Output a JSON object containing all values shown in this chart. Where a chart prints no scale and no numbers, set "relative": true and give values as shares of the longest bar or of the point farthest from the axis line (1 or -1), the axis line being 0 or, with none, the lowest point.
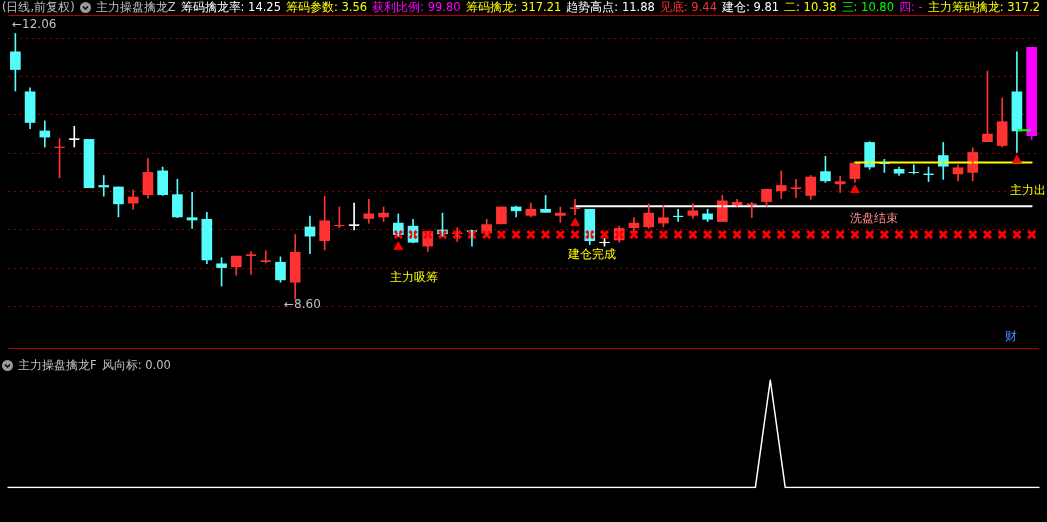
{
  "chart_data": [
    {
      "type": "candlestick",
      "title": "(日线,前复权)",
      "categories": [
        null,
        null,
        null,
        null,
        null,
        null,
        null,
        null,
        null,
        null,
        null,
        null,
        null,
        null,
        null,
        null,
        null,
        null,
        null,
        null,
        null,
        null,
        null,
        null,
        null,
        null,
        null,
        null,
        null,
        null,
        null,
        null,
        null,
        null,
        null,
        null,
        null,
        null,
        null,
        null,
        null,
        null,
        null,
        null,
        null,
        null,
        null,
        null,
        null,
        null,
        null,
        null,
        null,
        null,
        null,
        null,
        null,
        null,
        null,
        null,
        null,
        null,
        null,
        null,
        null,
        null,
        null,
        null,
        null,
        null
      ],
      "ohlc": [
        [
          11.82,
          12.06,
          11.31,
          11.59
        ],
        [
          11.3,
          11.35,
          10.82,
          10.9
        ],
        [
          10.79,
          10.92,
          10.58,
          10.71
        ],
        [
          10.58,
          10.69,
          10.18,
          10.58
        ],
        [
          10.69,
          10.85,
          10.58,
          10.69
        ],
        [
          10.68,
          10.68,
          10.05,
          10.05
        ],
        [
          10.08,
          10.21,
          9.94,
          10.06
        ],
        [
          10.06,
          10.06,
          9.67,
          9.84
        ],
        [
          9.85,
          10.02,
          9.77,
          9.93
        ],
        [
          9.96,
          10.43,
          9.91,
          10.25
        ],
        [
          10.27,
          10.32,
          9.95,
          9.96
        ],
        [
          9.96,
          10.16,
          9.66,
          9.67
        ],
        [
          9.66,
          9.99,
          9.52,
          9.63
        ],
        [
          9.64,
          9.73,
          9.06,
          9.11
        ],
        [
          9.06,
          9.14,
          8.77,
          9.01
        ],
        [
          9.02,
          9.16,
          8.91,
          9.16
        ],
        [
          9.18,
          9.22,
          8.92,
          9.18
        ],
        [
          9.1,
          9.23,
          9.07,
          9.1
        ],
        [
          9.08,
          9.15,
          8.82,
          8.85
        ],
        [
          8.82,
          9.44,
          8.6,
          9.21
        ],
        [
          9.54,
          9.68,
          9.19,
          9.42
        ],
        [
          9.36,
          9.94,
          9.24,
          9.62
        ],
        [
          9.56,
          9.8,
          9.53,
          9.56
        ],
        [
          9.57,
          9.85,
          9.5,
          9.57
        ],
        [
          9.65,
          9.9,
          9.59,
          9.71
        ],
        [
          9.67,
          9.8,
          9.61,
          9.72
        ],
        [
          9.59,
          9.71,
          9.42,
          9.44
        ],
        [
          9.55,
          9.64,
          9.33,
          9.34
        ],
        [
          9.29,
          9.48,
          9.22,
          9.48
        ],
        [
          9.5,
          9.72,
          9.42,
          9.45
        ],
        [
          9.46,
          9.53,
          9.35,
          9.46
        ],
        [
          9.49,
          9.5,
          9.29,
          9.49
        ],
        [
          9.46,
          9.64,
          9.44,
          9.57
        ],
        [
          9.58,
          9.8,
          9.58,
          9.8
        ],
        [
          9.8,
          9.81,
          9.67,
          9.75
        ],
        [
          9.69,
          9.85,
          9.67,
          9.77
        ],
        [
          9.77,
          9.95,
          9.73,
          9.73
        ],
        [
          9.69,
          9.8,
          9.6,
          9.72
        ],
        [
          9.79,
          9.9,
          9.7,
          9.79
        ],
        [
          9.77,
          9.77,
          9.31,
          9.36
        ],
        [
          9.34,
          9.39,
          9.29,
          9.34
        ],
        [
          9.37,
          9.55,
          9.34,
          9.52
        ],
        [
          9.53,
          9.66,
          9.47,
          9.59
        ],
        [
          9.54,
          9.84,
          9.52,
          9.72
        ],
        [
          9.59,
          9.82,
          9.54,
          9.66
        ],
        [
          9.68,
          9.77,
          9.61,
          9.68
        ],
        [
          9.69,
          9.84,
          9.65,
          9.75
        ],
        [
          9.71,
          9.77,
          9.61,
          9.64
        ],
        [
          9.61,
          9.95,
          9.61,
          9.88
        ],
        [
          9.82,
          9.9,
          9.81,
          9.86
        ],
        [
          9.84,
          9.86,
          9.66,
          9.84
        ],
        [
          9.87,
          10.03,
          9.81,
          10.03
        ],
        [
          10.01,
          10.27,
          9.91,
          10.08
        ],
        [
          10.05,
          10.16,
          9.92,
          10.05
        ],
        [
          9.95,
          10.21,
          9.9,
          10.19
        ],
        [
          10.26,
          10.46,
          10.12,
          10.14
        ],
        [
          10.1,
          10.2,
          9.99,
          10.13
        ],
        [
          10.17,
          10.37,
          10.12,
          10.37
        ],
        [
          10.64,
          10.65,
          10.29,
          10.32
        ],
        [
          10.37,
          10.42,
          10.25,
          10.37
        ],
        [
          10.29,
          10.32,
          10.21,
          10.24
        ],
        [
          10.25,
          10.35,
          10.23,
          10.25
        ],
        [
          10.23,
          10.32,
          10.13,
          10.23
        ],
        [
          10.47,
          10.64,
          10.16,
          10.33
        ],
        [
          10.23,
          10.35,
          10.14,
          10.31
        ],
        [
          10.25,
          10.57,
          10.14,
          10.51
        ],
        [
          10.65,
          11.57,
          10.65,
          10.75
        ],
        [
          10.6,
          11.22,
          10.58,
          10.91
        ],
        [
          11.3,
          11.82,
          10.51,
          10.79
        ],
        [
          10.73,
          11.88,
          10.68,
          11.88
        ]
      ],
      "colors": [
        "#54fcfc",
        "#54fcfc",
        "#54fcfc",
        "#ff3232",
        "#ffffff",
        "#54fcfc",
        "#54fcfc",
        "#54fcfc",
        "#ff3232",
        "#ff3232",
        "#54fcfc",
        "#54fcfc",
        "#54fcfc",
        "#54fcfc",
        "#54fcfc",
        "#ff3232",
        "#ff3232",
        "#ff3232",
        "#54fcfc",
        "#ff3232",
        "#54fcfc",
        "#ff3232",
        "#ff3232",
        "#ffffff",
        "#ff3232",
        "#ff3232",
        "#54fcfc",
        "#54fcfc",
        "#ff3232",
        "#54fcfc",
        "#ff3232",
        "#54fcfc",
        "#ff3232",
        "#ff3232",
        "#54fcfc",
        "#ff3232",
        "#54fcfc",
        "#ff3232",
        "#ff3232",
        "#54fcfc",
        "#ffffff",
        "#ff3232",
        "#ff3232",
        "#ff3232",
        "#ff3232",
        "#54fcfc",
        "#ff3232",
        "#54fcfc",
        "#ff3232",
        "#ff3232",
        "#ff3232",
        "#ff3232",
        "#ff3232",
        "#ff3232",
        "#ff3232",
        "#54fcfc",
        "#ff3232",
        "#ff3232",
        "#54fcfc",
        "#54fcfc",
        "#54fcfc",
        "#54fcfc",
        "#54fcfc",
        "#54fcfc",
        "#ff3232",
        "#ff3232",
        "#ff3232",
        "#ff3232",
        "#54fcfc",
        "#ff00ff"
      ],
      "series": [
        {
          "type": "line",
          "color": "#ffffff",
          "values": [
            null,
            null,
            null,
            null,
            null,
            null,
            null,
            null,
            null,
            null,
            null,
            null,
            null,
            null,
            null,
            null,
            null,
            null,
            null,
            null,
            null,
            null,
            null,
            null,
            null,
            null,
            null,
            null,
            null,
            null,
            null,
            null,
            null,
            null,
            null,
            null,
            null,
            null,
            9.81,
            9.81,
            9.81,
            9.81,
            9.81,
            9.81,
            9.81,
            9.81,
            9.81,
            9.81,
            9.81,
            9.81,
            9.81,
            9.81,
            9.81,
            9.81,
            9.81,
            9.81,
            9.81,
            9.81,
            9.81,
            9.81,
            9.81,
            9.81,
            9.81,
            9.81,
            9.81,
            9.81,
            9.81,
            9.81,
            9.81,
            9.81
          ]
        },
        {
          "type": "line",
          "color": "#ffff00",
          "values": [
            null,
            null,
            null,
            null,
            null,
            null,
            null,
            null,
            null,
            null,
            null,
            null,
            null,
            null,
            null,
            null,
            null,
            null,
            null,
            null,
            null,
            null,
            null,
            null,
            null,
            null,
            null,
            null,
            null,
            null,
            null,
            null,
            null,
            null,
            null,
            null,
            null,
            null,
            null,
            null,
            null,
            null,
            null,
            null,
            null,
            null,
            null,
            null,
            null,
            null,
            null,
            null,
            null,
            null,
            null,
            null,
            null,
            10.38,
            10.38,
            10.38,
            10.38,
            10.38,
            10.38,
            10.38,
            10.38,
            10.38,
            10.38,
            10.38,
            10.38,
            10.38
          ]
        },
        {
          "type": "line",
          "color": "#00ff00",
          "values": [
            null,
            null,
            null,
            null,
            null,
            null,
            null,
            null,
            null,
            null,
            null,
            null,
            null,
            null,
            null,
            null,
            null,
            null,
            null,
            null,
            null,
            null,
            null,
            null,
            null,
            null,
            null,
            null,
            null,
            null,
            null,
            null,
            null,
            null,
            null,
            null,
            null,
            null,
            null,
            null,
            null,
            null,
            null,
            null,
            null,
            null,
            null,
            null,
            null,
            null,
            null,
            null,
            null,
            null,
            null,
            null,
            null,
            null,
            null,
            null,
            null,
            null,
            null,
            null,
            null,
            null,
            null,
            null,
            10.8,
            10.8
          ]
        },
        {
          "type": "scatter",
          "marker": "cross",
          "color": "#ff0000",
          "values": [
            null,
            null,
            null,
            null,
            null,
            null,
            null,
            null,
            null,
            null,
            null,
            null,
            null,
            null,
            null,
            null,
            null,
            null,
            null,
            null,
            null,
            null,
            null,
            null,
            null,
            null,
            9.44,
            9.44,
            9.44,
            9.44,
            9.44,
            9.44,
            9.44,
            9.44,
            9.44,
            9.44,
            9.44,
            9.44,
            9.44,
            9.44,
            9.44,
            9.44,
            9.44,
            9.44,
            9.44,
            9.44,
            9.44,
            9.44,
            9.44,
            9.44,
            9.44,
            9.44,
            9.44,
            9.44,
            9.44,
            9.44,
            9.44,
            9.44,
            9.44,
            9.44,
            9.44,
            9.44,
            9.44,
            9.44,
            9.44,
            9.44,
            9.44,
            9.44,
            9.44,
            9.44
          ]
        },
        {
          "type": "scatter",
          "marker": "triangle",
          "color": "#ff0000",
          "values": [
            null,
            null,
            null,
            null,
            null,
            null,
            null,
            null,
            null,
            null,
            null,
            null,
            null,
            null,
            null,
            null,
            null,
            null,
            null,
            null,
            null,
            null,
            null,
            null,
            null,
            null,
            9.28,
            null,
            null,
            null,
            null,
            null,
            null,
            null,
            null,
            null,
            null,
            null,
            9.59,
            null,
            null,
            null,
            null,
            null,
            null,
            null,
            null,
            null,
            null,
            null,
            null,
            null,
            null,
            null,
            null,
            null,
            null,
            10.02,
            null,
            null,
            null,
            null,
            null,
            null,
            null,
            null,
            null,
            null,
            10.41,
            null
          ]
        }
      ],
      "ylim": [
        7.95,
        12.3
      ],
      "yticks": [
        {
          "value": 8.5,
          "label": null
        },
        {
          "value": 9,
          "label": null
        },
        {
          "value": 9.5,
          "label": null
        },
        {
          "value": 10,
          "label": null
        },
        {
          "value": 10.5,
          "label": null
        },
        {
          "value": 11,
          "label": null
        },
        {
          "value": 11.5,
          "label": null
        },
        {
          "value": 12,
          "label": null
        }
      ],
      "grid": "y",
      "tick_labels": false,
      "legend": false,
      "annotations": [
        "主力操盘擒龙Z",
        "筹码擒龙率: 14.25",
        "筹码参数: 3.56",
        "获利比例: 99.80",
        "筹码擒龙: 317.21",
        "趋势高点: 11.88",
        "见底: 9.44",
        "建仓: 9.81",
        "二: 10.38",
        "三: 10.80",
        "四: -",
        "主力筹码擒龙: 317.2",
        "←12.06",
        "←8.60",
        "主力吸筹",
        "建仓完成",
        "洗盘结束",
        "主力出",
        "财"
      ]
    },
    {
      "type": "line",
      "title": "主力操盘擒龙F",
      "categories": [
        null,
        null,
        null,
        null,
        null,
        null,
        null,
        null,
        null,
        null,
        null,
        null,
        null,
        null,
        null,
        null,
        null,
        null,
        null,
        null,
        null,
        null,
        null,
        null,
        null,
        null,
        null,
        null,
        null,
        null,
        null,
        null,
        null,
        null,
        null,
        null,
        null,
        null,
        null,
        null,
        null,
        null,
        null,
        null,
        null,
        null,
        null,
        null,
        null,
        null,
        null,
        null,
        null,
        null,
        null,
        null,
        null,
        null,
        null,
        null,
        null,
        null,
        null,
        null,
        null,
        null,
        null,
        null,
        null,
        null
      ],
      "values": [
        0,
        0,
        0,
        0,
        0,
        0,
        0,
        0,
        0,
        0,
        0,
        0,
        0,
        0,
        0,
        0,
        0,
        0,
        0,
        0,
        0,
        0,
        0,
        0,
        0,
        0,
        0,
        0,
        0,
        0,
        0,
        0,
        0,
        0,
        0,
        0,
        0,
        0,
        0,
        0,
        0,
        0,
        0,
        0,
        0,
        0,
        0,
        0,
        0,
        0,
        0,
        1,
        0,
        0,
        0,
        0,
        0,
        0,
        0,
        0,
        0,
        0,
        0,
        0,
        0,
        0,
        0,
        0,
        0,
        0
      ],
      "color": "#ffffff",
      "relative": true,
      "legend": false,
      "annotations": [
        "风向标: 0.00"
      ]
    }
  ]
}
